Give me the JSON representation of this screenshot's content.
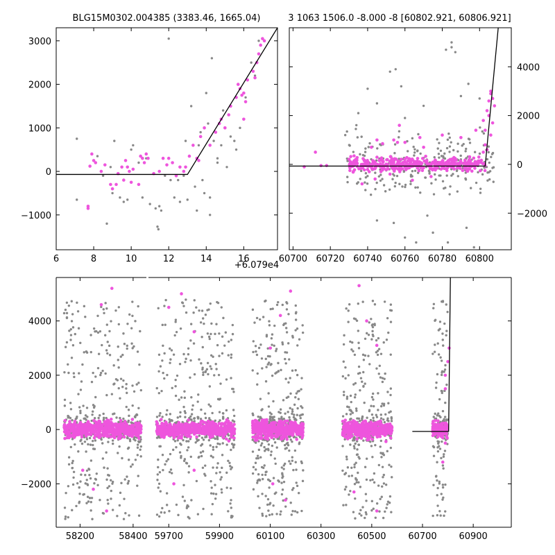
{
  "colors": {
    "background": "#ffffff",
    "data_gray": "#888888",
    "data_magenta": "#ee55dd",
    "model": "#000000"
  },
  "chart_data": [
    {
      "id": "top-left",
      "type": "scatter",
      "title": "BLG15M0302.004385 (3383.46, 1665.04)",
      "xlim": [
        6.0,
        17.8
      ],
      "ylim": [
        -1800,
        3300
      ],
      "xticks": [
        6,
        8,
        10,
        12,
        14,
        16
      ],
      "yticks": [
        -1000,
        0,
        1000,
        2000,
        3000
      ],
      "xtick_labels": [
        "6",
        "8",
        "10",
        "12",
        "14",
        "16"
      ],
      "ytick_labels": [
        "−1000",
        "0",
        "1000",
        "2000",
        "3000"
      ],
      "x_offset_label": "+6.079e4",
      "yaxis_side": "left",
      "model": {
        "x": [
          6.0,
          13.0,
          17.8
        ],
        "y": [
          -70,
          -70,
          3300
        ]
      },
      "series": [
        {
          "color": "gray",
          "points": [
            [
              7.1,
              750
            ],
            [
              7.1,
              -650
            ],
            [
              8.2,
              350
            ],
            [
              8.5,
              -100
            ],
            [
              8.7,
              -1200
            ],
            [
              8.9,
              100
            ],
            [
              9.0,
              -500
            ],
            [
              9.1,
              700
            ],
            [
              9.4,
              -600
            ],
            [
              9.6,
              -700
            ],
            [
              9.8,
              -650
            ],
            [
              10.0,
              500
            ],
            [
              10.1,
              600
            ],
            [
              10.4,
              200
            ],
            [
              10.6,
              -600
            ],
            [
              10.8,
              300
            ],
            [
              11.0,
              -750
            ],
            [
              11.3,
              -850
            ],
            [
              11.4,
              -1270
            ],
            [
              11.45,
              -1330
            ],
            [
              11.5,
              -800
            ],
            [
              11.6,
              -900
            ],
            [
              11.8,
              -100
            ],
            [
              11.9,
              150
            ],
            [
              12.1,
              -200
            ],
            [
              12.3,
              -600
            ],
            [
              12.5,
              -200
            ],
            [
              12.6,
              -700
            ],
            [
              12.8,
              -100
            ],
            [
              12.9,
              700
            ],
            [
              13.0,
              -650
            ],
            [
              13.2,
              1500
            ],
            [
              13.4,
              -350
            ],
            [
              13.5,
              -900
            ],
            [
              13.6,
              600
            ],
            [
              13.7,
              900
            ],
            [
              13.8,
              -200
            ],
            [
              13.9,
              -500
            ],
            [
              14.0,
              1800
            ],
            [
              14.1,
              1100
            ],
            [
              14.2,
              -600
            ],
            [
              14.2,
              -1000
            ],
            [
              14.3,
              2600
            ],
            [
              14.4,
              700
            ],
            [
              14.6,
              200
            ],
            [
              14.6,
              300
            ],
            [
              14.8,
              600
            ],
            [
              14.9,
              1400
            ],
            [
              15.1,
              100
            ],
            [
              15.3,
              800
            ],
            [
              15.5,
              700
            ],
            [
              15.6,
              500
            ],
            [
              15.8,
              1000
            ],
            [
              16.1,
              1700
            ],
            [
              16.4,
              2500
            ],
            [
              16.6,
              2200
            ],
            [
              16.8,
              3000
            ],
            [
              12.0,
              3050
            ]
          ]
        },
        {
          "color": "magenta",
          "points": [
            [
              7.7,
              -800
            ],
            [
              7.7,
              -850
            ],
            [
              7.8,
              120
            ],
            [
              7.9,
              400
            ],
            [
              8.0,
              250
            ],
            [
              8.1,
              200
            ],
            [
              8.4,
              0
            ],
            [
              8.6,
              150
            ],
            [
              8.9,
              -300
            ],
            [
              9.0,
              -400
            ],
            [
              9.2,
              -300
            ],
            [
              9.3,
              -50
            ],
            [
              9.5,
              100
            ],
            [
              9.6,
              -200
            ],
            [
              9.7,
              250
            ],
            [
              9.8,
              100
            ],
            [
              9.9,
              0
            ],
            [
              10.0,
              -250
            ],
            [
              10.1,
              50
            ],
            [
              10.4,
              -300
            ],
            [
              10.5,
              350
            ],
            [
              10.6,
              300
            ],
            [
              10.7,
              200
            ],
            [
              10.8,
              400
            ],
            [
              10.9,
              300
            ],
            [
              11.2,
              -50
            ],
            [
              11.5,
              0
            ],
            [
              11.7,
              300
            ],
            [
              11.9,
              150
            ],
            [
              12.0,
              300
            ],
            [
              12.2,
              200
            ],
            [
              12.4,
              -100
            ],
            [
              12.6,
              100
            ],
            [
              12.8,
              0
            ],
            [
              12.9,
              100
            ],
            [
              13.1,
              350
            ],
            [
              13.3,
              600
            ],
            [
              13.5,
              300
            ],
            [
              13.6,
              250
            ],
            [
              13.7,
              800
            ],
            [
              13.9,
              1000
            ],
            [
              14.2,
              600
            ],
            [
              14.5,
              900
            ],
            [
              14.7,
              1100
            ],
            [
              14.8,
              1200
            ],
            [
              15.0,
              1000
            ],
            [
              15.2,
              1300
            ],
            [
              15.3,
              1500
            ],
            [
              15.6,
              1700
            ],
            [
              15.8,
              1900
            ],
            [
              16.0,
              1800
            ],
            [
              16.1,
              1600
            ],
            [
              16.2,
              2100
            ],
            [
              16.5,
              2300
            ],
            [
              16.7,
              2500
            ],
            [
              16.8,
              2700
            ],
            [
              16.9,
              2900
            ],
            [
              17.0,
              3050
            ],
            [
              17.1,
              3000
            ],
            [
              16.6,
              2150
            ],
            [
              16.0,
              1200
            ],
            [
              15.7,
              2000
            ],
            [
              15.9,
              1750
            ]
          ]
        }
      ]
    },
    {
      "id": "top-right",
      "type": "scatter",
      "title": "3 1063 1506.0 -8.000 -8 [60802.921, 60806.921]",
      "xlim": [
        60698,
        60817
      ],
      "ylim": [
        -3500,
        5600
      ],
      "xticks": [
        60700,
        60720,
        60740,
        60760,
        60780,
        60800
      ],
      "yticks": [
        -2000,
        0,
        2000,
        4000
      ],
      "xtick_labels": [
        "60700",
        "60720",
        "60740",
        "60760",
        "60780",
        "60800"
      ],
      "ytick_labels": [
        "−2000",
        "0",
        "2000",
        "4000"
      ],
      "yaxis_side": "right",
      "model": {
        "x": [
          60698,
          60803,
          60810
        ],
        "y": [
          -70,
          -70,
          5600
        ]
      },
      "series": [
        {
          "color": "gray",
          "band": [
            60728,
            60808,
            -2200,
            2200
          ],
          "n": 260,
          "seed": 11,
          "extra": [
            [
              60755,
              3900
            ],
            [
              60752,
              3800
            ],
            [
              60758,
              3200
            ],
            [
              60740,
              3100
            ],
            [
              60785,
              5000
            ],
            [
              60785,
              4800
            ],
            [
              60787,
              4600
            ],
            [
              60782,
              4700
            ],
            [
              60735,
              2100
            ],
            [
              60745,
              2500
            ],
            [
              60790,
              2800
            ],
            [
              60794,
              3300
            ],
            [
              60770,
              2400
            ],
            [
              60800,
              2700
            ],
            [
              60760,
              -3000
            ],
            [
              60775,
              -2800
            ],
            [
              60797,
              -3400
            ],
            [
              60783,
              -3200
            ],
            [
              60793,
              -2600
            ],
            [
              60745,
              -2300
            ],
            [
              60754,
              -2400
            ],
            [
              60766,
              -3200
            ],
            [
              60772,
              -2100
            ],
            [
              60728,
              1200
            ],
            [
              60760,
              1900
            ]
          ]
        },
        {
          "color": "magenta",
          "band": [
            60730,
            60803,
            -450,
            450
          ],
          "n": 380,
          "seed": 7,
          "extra": [
            [
              60712,
              500
            ],
            [
              60706,
              -100
            ],
            [
              60715,
              -50
            ],
            [
              60718,
              -50
            ],
            [
              60742,
              700
            ],
            [
              60748,
              850
            ],
            [
              60756,
              900
            ],
            [
              60757,
              1600
            ],
            [
              60760,
              900
            ],
            [
              60768,
              1100
            ],
            [
              60770,
              700
            ],
            [
              60780,
              1200
            ],
            [
              60790,
              1100
            ],
            [
              60798,
              1400
            ],
            [
              60754,
              1000
            ],
            [
              60802,
              1800
            ],
            [
              60803,
              1400
            ],
            [
              60804,
              2200
            ],
            [
              60805,
              2600
            ],
            [
              60806,
              2900
            ],
            [
              60807,
              2700
            ],
            [
              60806,
              3000
            ],
            [
              60805,
              2000
            ],
            [
              60808,
              2400
            ],
            [
              60804,
              600
            ],
            [
              60803,
              800
            ],
            [
              60802,
              500
            ],
            [
              60806,
              1200
            ],
            [
              60807,
              1700
            ],
            [
              60774,
              -500
            ],
            [
              60764,
              -650
            ],
            [
              60737,
              -800
            ],
            [
              60744,
              -600
            ],
            [
              60745,
              1000
            ],
            [
              60752,
              -400
            ]
          ]
        }
      ]
    },
    {
      "id": "bottom",
      "type": "scatter",
      "xlim_segments": [
        [
          58110,
          58450
        ],
        [
          59620,
          61050
        ]
      ],
      "ylim": [
        -3600,
        5600
      ],
      "xticks": [
        58200,
        58400,
        59700,
        59900,
        60100,
        60300,
        60500,
        60700,
        60900
      ],
      "yticks": [
        -2000,
        0,
        2000,
        4000
      ],
      "xtick_labels": [
        "58200",
        "58400",
        "59700",
        "59900",
        "60100",
        "60300",
        "60500",
        "60700",
        "60900"
      ],
      "ytick_labels": [
        "−2000",
        "0",
        "2000",
        "4000"
      ],
      "yaxis_side": "left",
      "model": {
        "x": [
          60660,
          60803,
          60810
        ],
        "y": [
          -70,
          -70,
          5600
        ]
      },
      "series": [
        {
          "color": "gray",
          "seasons": [
            [
              58140,
              58430,
              560
            ],
            [
              59650,
              59960,
              560
            ],
            [
              60030,
              60230,
              500
            ],
            [
              60385,
              60580,
              440
            ],
            [
              60740,
              60800,
              170
            ]
          ],
          "spread": [
            -2600,
            4200
          ],
          "seed": 3
        },
        {
          "color": "magenta",
          "seasons": [
            [
              58140,
              58430,
              520
            ],
            [
              59650,
              59960,
              520
            ],
            [
              60030,
              60230,
              480
            ],
            [
              60385,
              60580,
              420
            ],
            [
              60740,
              60800,
              130
            ]
          ],
          "spread": [
            -600,
            600
          ],
          "seed": 5,
          "extra": [
            [
              58210,
              -1500
            ],
            [
              58250,
              -2200
            ],
            [
              58300,
              -3000
            ],
            [
              58320,
              5200
            ],
            [
              58280,
              4600
            ],
            [
              59700,
              4500
            ],
            [
              59750,
              5000
            ],
            [
              59800,
              3600
            ],
            [
              60100,
              3000
            ],
            [
              60140,
              4200
            ],
            [
              60180,
              5100
            ],
            [
              60450,
              5300
            ],
            [
              60480,
              4000
            ],
            [
              60520,
              3100
            ],
            [
              60430,
              -2300
            ],
            [
              60520,
              -3000
            ],
            [
              60110,
              -2000
            ],
            [
              60160,
              -2600
            ],
            [
              59800,
              -1500
            ],
            [
              59720,
              -2000
            ],
            [
              60790,
              1500
            ],
            [
              60800,
              2500
            ],
            [
              60805,
              3000
            ],
            [
              60790,
              2000
            ],
            [
              60780,
              -1200
            ],
            [
              60790,
              -500
            ]
          ]
        }
      ]
    }
  ]
}
